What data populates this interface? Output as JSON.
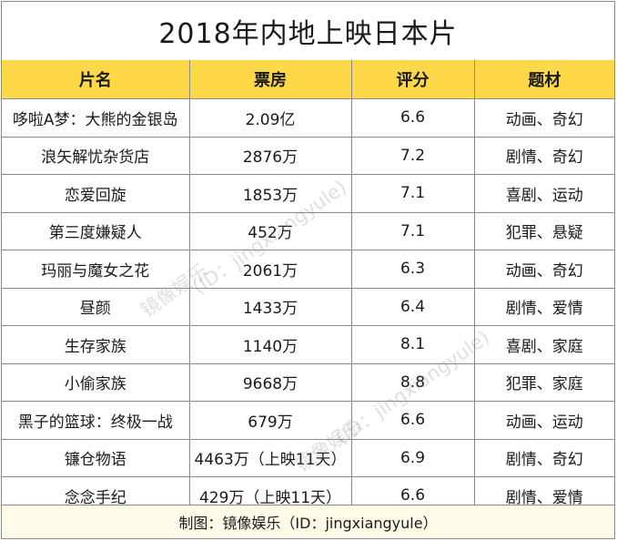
{
  "title": "2018年内地上映日本片",
  "columns": [
    "片名",
    "票房",
    "评分",
    "题材"
  ],
  "rows": [
    [
      "哆啦A梦：大熊的金银岛",
      "2.09亿",
      "6.6",
      "动画、奇幻"
    ],
    [
      "浪矢解忧杂货店",
      "2876万",
      "7.2",
      "剧情、奇幻"
    ],
    [
      "恋爱回旋",
      "1853万",
      "7.1",
      "喜剧、运动"
    ],
    [
      "第三度嫌疑人",
      "452万",
      "7.1",
      "犯罪、悬疑"
    ],
    [
      "玛丽与魔女之花",
      "2061万",
      "6.3",
      "动画、奇幻"
    ],
    [
      "昼颜",
      "1433万",
      "6.4",
      "剧情、爱情"
    ],
    [
      "生存家族",
      "1140万",
      "8.1",
      "喜剧、家庭"
    ],
    [
      "小偷家族",
      "9668万",
      "8.8",
      "犯罪、家庭"
    ],
    [
      "黑子的篮球：终极一战",
      "679万",
      "6.6",
      "动画、运动"
    ],
    [
      "镰仓物语",
      "4463万（上映11天）",
      "6.9",
      "剧情、奇幻"
    ],
    [
      "念念手纪",
      "429万（上映11天）",
      "6.6",
      "剧情、爱情"
    ]
  ],
  "footer": "制图：镜像娱乐（ID：jingxiangyule）",
  "watermark": {
    "line1": "镜像娱乐",
    "line2": "(ID：jingxiangyule)"
  },
  "colors": {
    "header_bg": "#ffd84a",
    "border": "#8a8a8a",
    "footer_bg": "#fffbe8"
  }
}
